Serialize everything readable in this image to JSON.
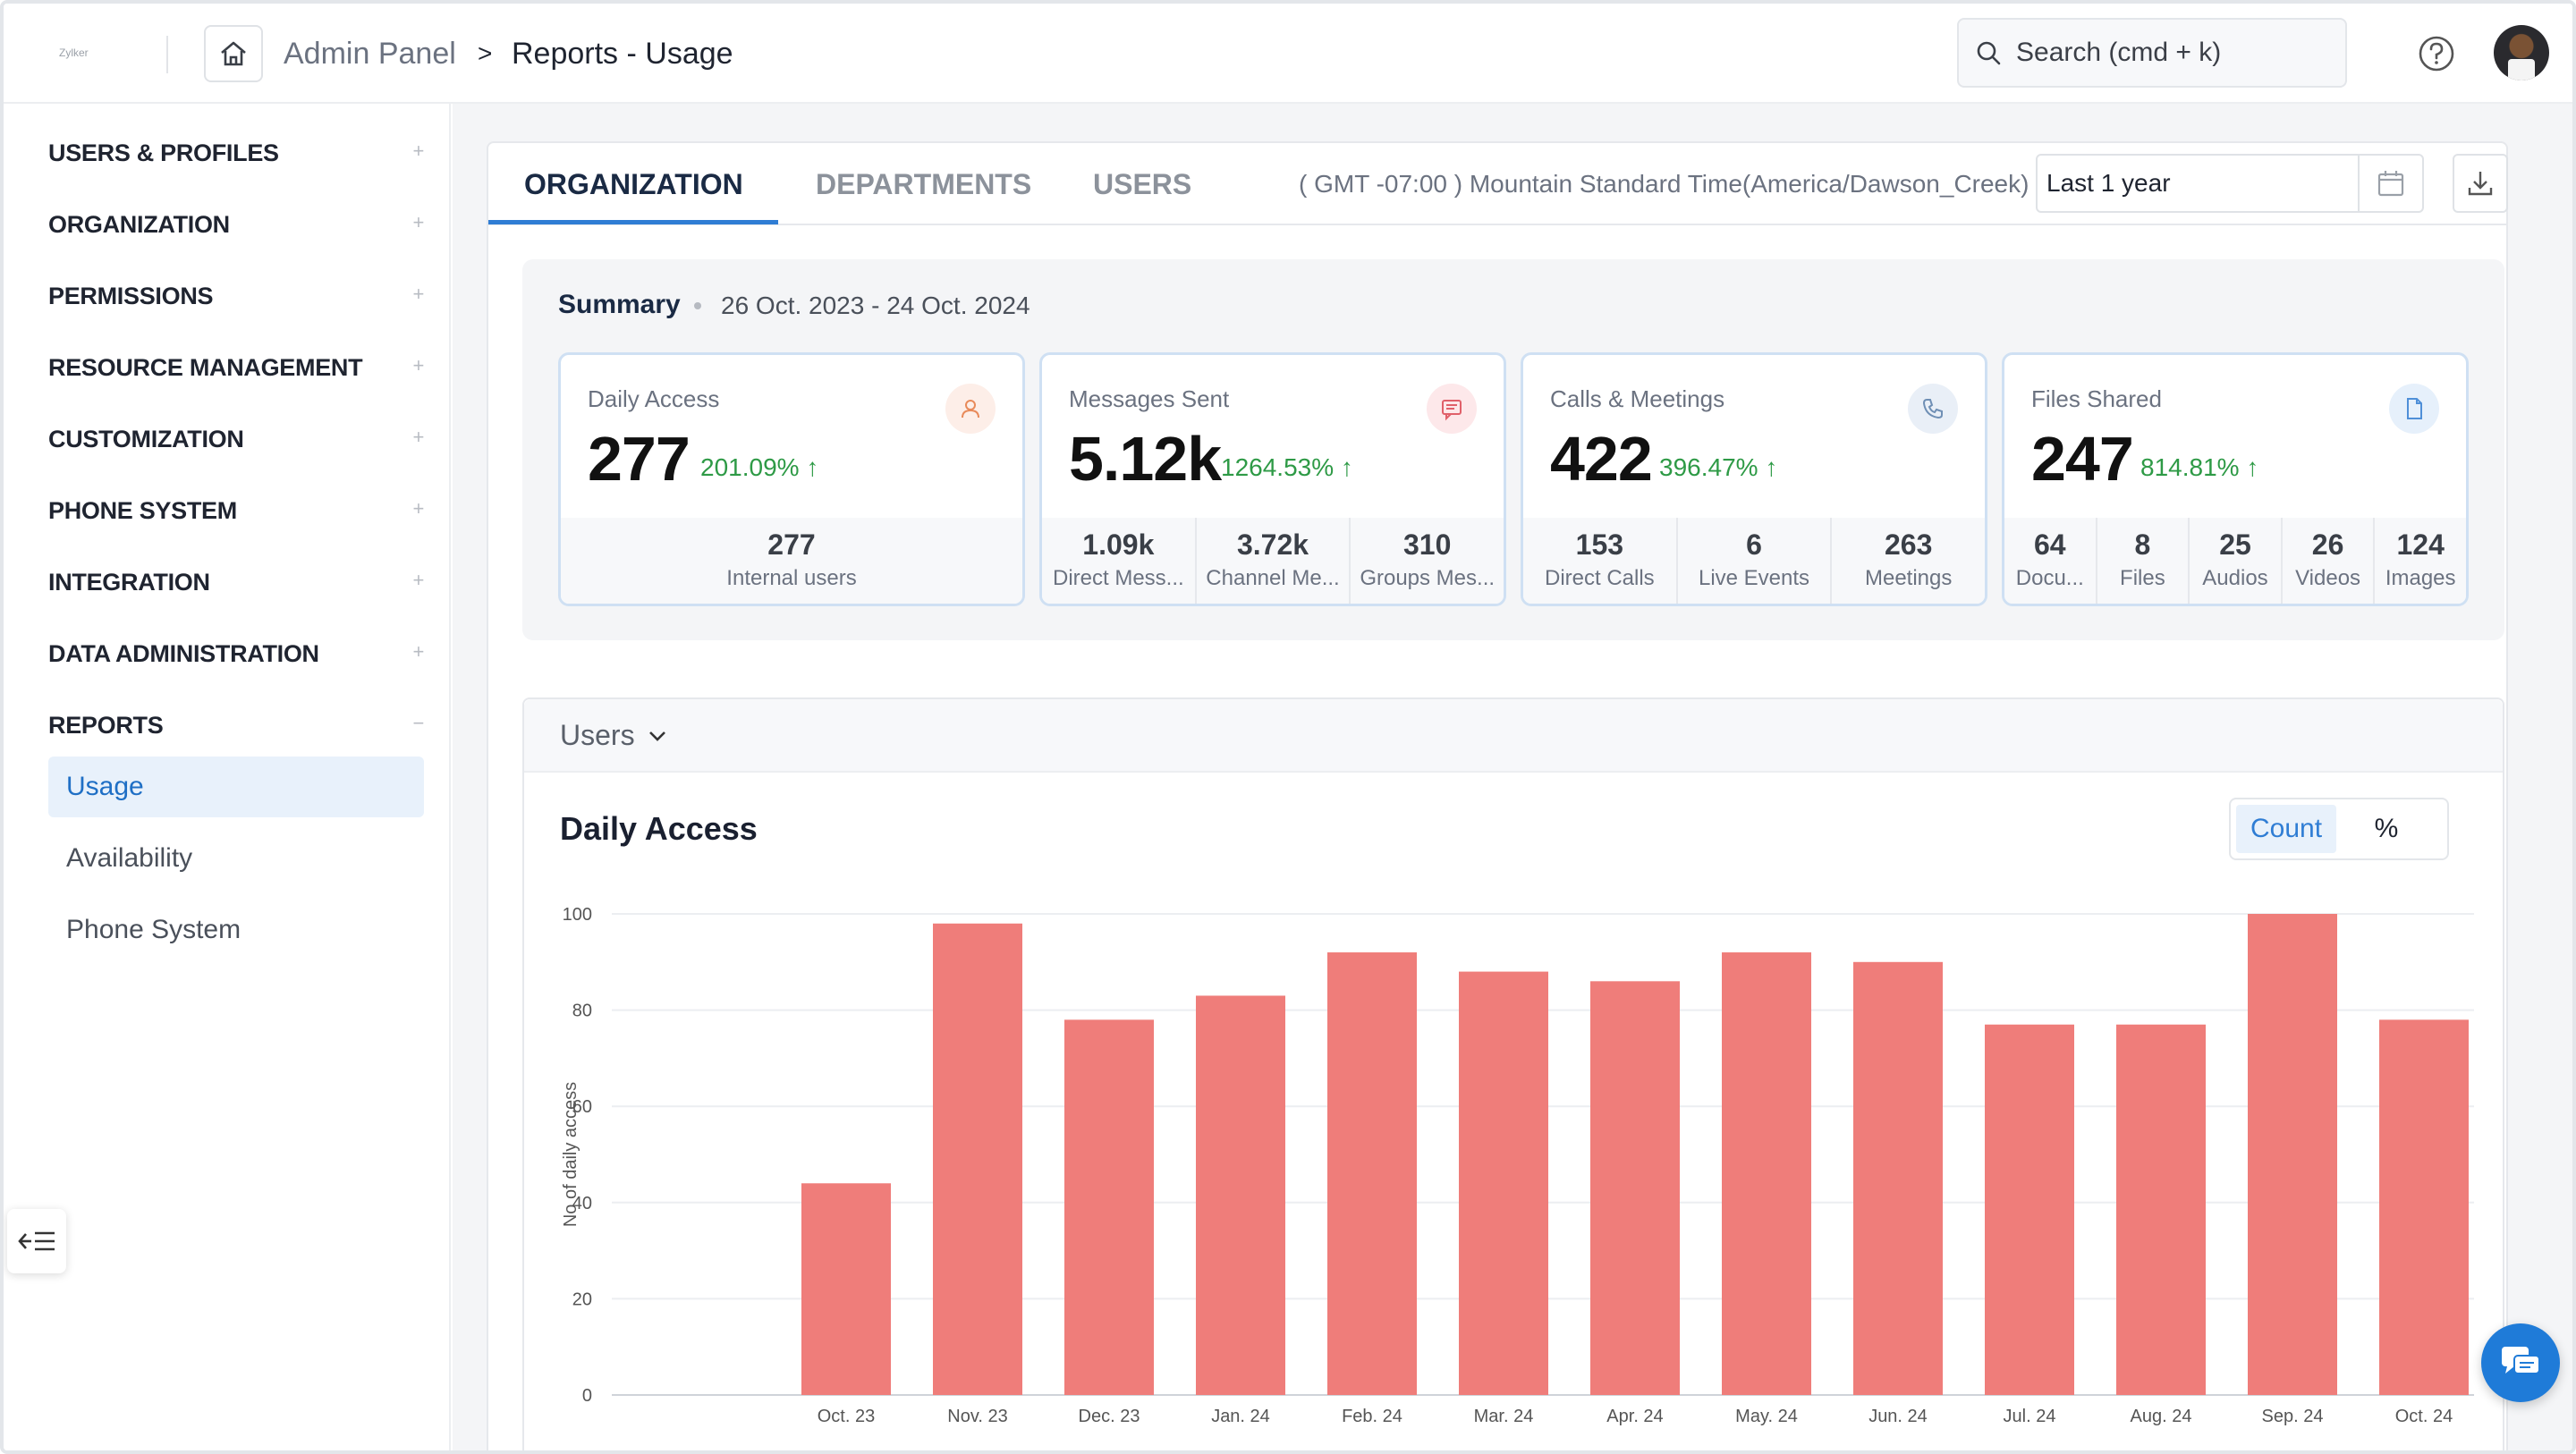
{
  "header": {
    "logo_text": "Zylker",
    "breadcrumb": {
      "root": "Admin Panel",
      "separator": ">",
      "current": "Reports - Usage"
    },
    "search_placeholder": "Search (cmd + k)"
  },
  "sidebar": {
    "sections": [
      {
        "label": "USERS & PROFILES",
        "toggle": "+"
      },
      {
        "label": "ORGANIZATION",
        "toggle": "+"
      },
      {
        "label": "PERMISSIONS",
        "toggle": "+"
      },
      {
        "label": "RESOURCE MANAGEMENT",
        "toggle": "+"
      },
      {
        "label": "CUSTOMIZATION",
        "toggle": "+"
      },
      {
        "label": "PHONE SYSTEM",
        "toggle": "+"
      },
      {
        "label": "INTEGRATION",
        "toggle": "+"
      },
      {
        "label": "DATA ADMINISTRATION",
        "toggle": "+"
      },
      {
        "label": "REPORTS",
        "toggle": "−"
      }
    ],
    "report_items": [
      {
        "label": "Usage",
        "active": true
      },
      {
        "label": "Availability",
        "active": false
      },
      {
        "label": "Phone System",
        "active": false
      }
    ]
  },
  "tabs": [
    {
      "label": "ORGANIZATION",
      "active": true
    },
    {
      "label": "DEPARTMENTS",
      "active": false
    },
    {
      "label": "USERS",
      "active": false
    }
  ],
  "timezone": "( GMT -07:00 ) Mountain Standard Time(America/Dawson_Creek)",
  "date_range": "Last 1 year",
  "summary": {
    "title": "Summary",
    "range": "26 Oct. 2023 - 24 Oct. 2024",
    "stats": [
      {
        "label": "Daily Access",
        "value": "277",
        "growth": "201.09%",
        "icon": "user-icon",
        "breakdown": [
          {
            "num": "277",
            "label": "Internal users"
          }
        ]
      },
      {
        "label": "Messages Sent",
        "value": "5.12k",
        "growth": "1264.53%",
        "icon": "message-icon",
        "breakdown": [
          {
            "num": "1.09k",
            "label": "Direct Mess..."
          },
          {
            "num": "3.72k",
            "label": "Channel Me..."
          },
          {
            "num": "310",
            "label": "Groups Mes..."
          }
        ]
      },
      {
        "label": "Calls & Meetings",
        "value": "422",
        "growth": "396.47%",
        "icon": "phone-icon",
        "breakdown": [
          {
            "num": "153",
            "label": "Direct Calls"
          },
          {
            "num": "6",
            "label": "Live Events"
          },
          {
            "num": "263",
            "label": "Meetings"
          }
        ]
      },
      {
        "label": "Files Shared",
        "value": "247",
        "growth": "814.81%",
        "icon": "file-icon",
        "breakdown": [
          {
            "num": "64",
            "label": "Docu..."
          },
          {
            "num": "8",
            "label": "Files"
          },
          {
            "num": "25",
            "label": "Audios"
          },
          {
            "num": "26",
            "label": "Videos"
          },
          {
            "num": "124",
            "label": "Images"
          }
        ]
      }
    ]
  },
  "users_panel": {
    "dropdown": "Users",
    "chart_title": "Daily Access",
    "toggle": {
      "count": "Count",
      "percent": "%"
    }
  },
  "colors": {
    "accent": "#2f7dd4",
    "bar": "#ef7d7a",
    "growth": "#2e9a46"
  },
  "chart_data": {
    "type": "bar",
    "title": "Daily Access",
    "ylabel": "No of daily access",
    "xlabel": "",
    "categories": [
      "Oct. 23",
      "Nov. 23",
      "Dec. 23",
      "Jan. 24",
      "Feb. 24",
      "Mar. 24",
      "Apr. 24",
      "May. 24",
      "Jun. 24",
      "Jul. 24",
      "Aug. 24",
      "Sep. 24",
      "Oct. 24"
    ],
    "values": [
      44,
      98,
      78,
      83,
      92,
      88,
      86,
      92,
      90,
      77,
      77,
      100,
      78
    ],
    "ylim": [
      0,
      100
    ],
    "yticks": [
      0,
      20,
      40,
      60,
      80,
      100
    ],
    "grid": true
  }
}
